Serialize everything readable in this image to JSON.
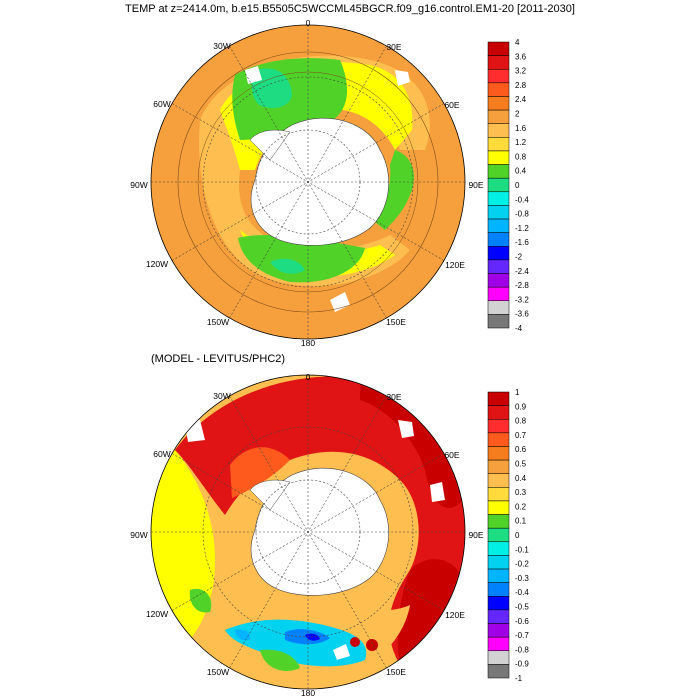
{
  "top_panel": {
    "title": "TEMP at z=2414.0m, b.e15.B5505C5WCCML45BGCR.f09_g16.control.EM1-20 [2011-2030]",
    "lon_labels": {
      "n0": "0",
      "n30e": "30E",
      "n60e": "60E",
      "n90e": "90E",
      "n120e": "120E",
      "n150e": "150E",
      "n180": "180",
      "n150w": "150W",
      "n120w": "120W",
      "n90w": "90W",
      "n60w": "60W",
      "n30w": "30W"
    },
    "colorbar": {
      "labels": [
        "4",
        "3.6",
        "3.2",
        "2.8",
        "2.4",
        "2",
        "1.6",
        "1.2",
        "0.8",
        "0.4",
        "0",
        "-0.4",
        "-0.8",
        "-1.2",
        "-1.6",
        "-2",
        "-2.4",
        "-2.8",
        "-3.2",
        "-3.6",
        "-4"
      ],
      "colors": [
        "#c80000",
        "#e01414",
        "#ff2d2d",
        "#ff5a1e",
        "#f57d1e",
        "#f5a03c",
        "#ffbe50",
        "#ffdc3c",
        "#ffff00",
        "#50d228",
        "#1edc82",
        "#00f0e6",
        "#00d2f0",
        "#00b4ff",
        "#0082ff",
        "#0000ff",
        "#6428ff",
        "#a000e6",
        "#ff00ff",
        "#d2d2d2",
        "#787878"
      ]
    }
  },
  "bottom_panel": {
    "title": "(MODEL - LEVITUS/PHC2)",
    "lon_labels": {
      "n0": "0",
      "n30e": "30E",
      "n60e": "60E",
      "n90e": "90E",
      "n120e": "120E",
      "n150e": "150E",
      "n180": "180",
      "n150w": "150W",
      "n120w": "120W",
      "n90w": "90W",
      "n60w": "60W",
      "n30w": "30W"
    },
    "colorbar": {
      "labels": [
        "1",
        "0.9",
        "0.8",
        "0.7",
        "0.6",
        "0.5",
        "0.4",
        "0.3",
        "0.2",
        "0.1",
        "0",
        "-0.1",
        "-0.2",
        "-0.3",
        "-0.4",
        "-0.5",
        "-0.6",
        "-0.7",
        "-0.8",
        "-0.9",
        "-1"
      ],
      "colors": [
        "#c80000",
        "#e01414",
        "#ff2d2d",
        "#ff5a1e",
        "#f57d1e",
        "#f5a03c",
        "#ffbe50",
        "#ffdc3c",
        "#ffff00",
        "#50d228",
        "#1edc82",
        "#00f0e6",
        "#00d2f0",
        "#00b4ff",
        "#0082ff",
        "#0000ff",
        "#6428ff",
        "#a000e6",
        "#ff00ff",
        "#d2d2d2",
        "#787878"
      ]
    }
  }
}
